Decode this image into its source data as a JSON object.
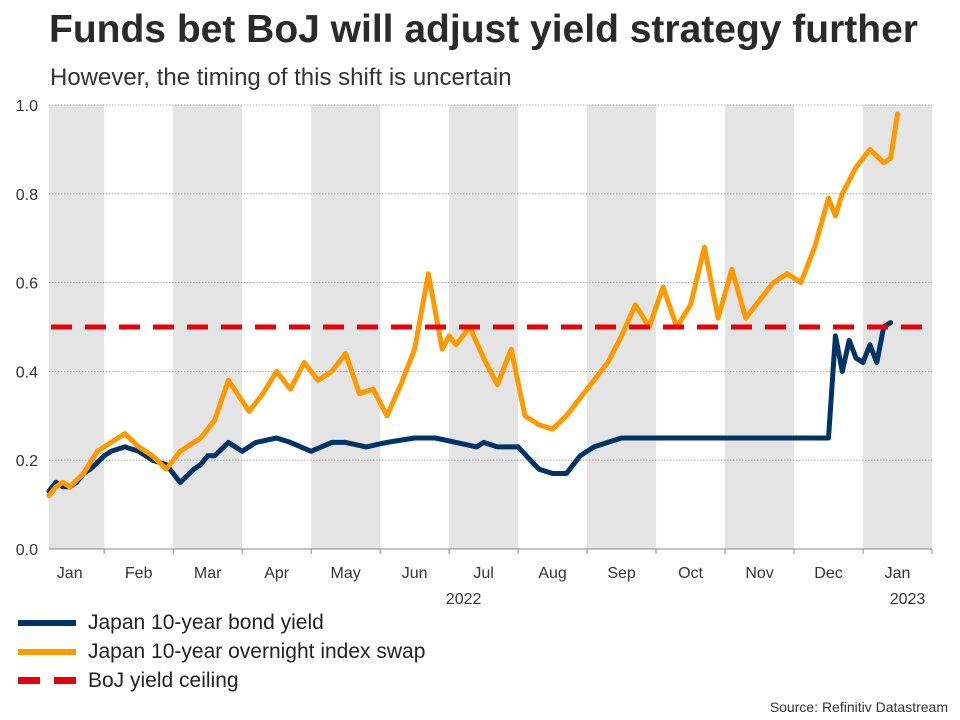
{
  "title": "Funds bet BoJ will adjust yield strategy further",
  "subtitle": "However, the timing of this shift is uncertain",
  "source": "Source: Refinitiv Datastream",
  "colors": {
    "bond": "#003366",
    "swap": "#ff9900",
    "ceiling": "#e8000b",
    "band": "#e4e4e4",
    "grid": "#9a9a9a"
  },
  "legend": [
    {
      "label": "Japan 10-year bond yield",
      "color": "#003366",
      "style": "solid"
    },
    {
      "label": "Japan 10-year overnight index swap",
      "color": "#ff9900",
      "style": "solid"
    },
    {
      "label": "BoJ yield ceiling",
      "color": "#e8000b",
      "style": "dashed"
    }
  ],
  "chart_data": {
    "type": "line",
    "ylim": [
      0,
      1.0
    ],
    "yticks": [
      "0.0",
      "0.2",
      "0.4",
      "0.6",
      "0.8",
      "1.0"
    ],
    "ytick_values": [
      0,
      0.2,
      0.4,
      0.6,
      0.8,
      1.0
    ],
    "month_labels": [
      "Jan",
      "Feb",
      "Mar",
      "Apr",
      "May",
      "Jun",
      "Jul",
      "Aug",
      "Sep",
      "Oct",
      "Nov",
      "Dec",
      "Jan"
    ],
    "year_labels": [
      {
        "label": "2022",
        "month_index": 6
      },
      {
        "label": "2023",
        "month_index": 12
      }
    ],
    "xlim_months": [
      -0.3,
      12.5
    ],
    "shaded_month_indices": [
      0,
      2,
      4,
      6,
      8,
      10,
      12
    ],
    "ceiling": {
      "name": "BoJ yield ceiling",
      "value": 0.5
    },
    "series": [
      {
        "name": "Japan 10-year bond yield",
        "x": [
          -0.3,
          -0.2,
          -0.1,
          0.0,
          0.1,
          0.2,
          0.3,
          0.5,
          0.6,
          0.8,
          1.0,
          1.2,
          1.4,
          1.6,
          1.8,
          1.9,
          2.0,
          2.1,
          2.3,
          2.5,
          2.7,
          3.0,
          3.2,
          3.5,
          3.8,
          4.0,
          4.3,
          4.6,
          5.0,
          5.3,
          5.6,
          5.9,
          6.0,
          6.2,
          6.5,
          6.8,
          7.0,
          7.2,
          7.4,
          7.6,
          7.8,
          8.0,
          8.3,
          8.6,
          9.0,
          9.3,
          9.6,
          10.0,
          10.3,
          10.6,
          11.0,
          11.1,
          11.2,
          11.3,
          11.4,
          11.5,
          11.6,
          11.7,
          11.8,
          11.9
        ],
        "y": [
          0.13,
          0.15,
          0.14,
          0.14,
          0.15,
          0.17,
          0.18,
          0.21,
          0.22,
          0.23,
          0.22,
          0.2,
          0.19,
          0.15,
          0.18,
          0.19,
          0.21,
          0.21,
          0.24,
          0.22,
          0.24,
          0.25,
          0.24,
          0.22,
          0.24,
          0.24,
          0.23,
          0.24,
          0.25,
          0.25,
          0.24,
          0.23,
          0.24,
          0.23,
          0.23,
          0.18,
          0.17,
          0.17,
          0.21,
          0.23,
          0.24,
          0.25,
          0.25,
          0.25,
          0.25,
          0.25,
          0.25,
          0.25,
          0.25,
          0.25,
          0.25,
          0.48,
          0.4,
          0.47,
          0.43,
          0.42,
          0.46,
          0.42,
          0.5,
          0.51
        ]
      },
      {
        "name": "Japan 10-year overnight index swap",
        "x": [
          -0.3,
          -0.2,
          -0.1,
          0.0,
          0.2,
          0.4,
          0.6,
          0.8,
          1.0,
          1.2,
          1.4,
          1.6,
          1.8,
          1.9,
          2.1,
          2.3,
          2.6,
          2.8,
          3.0,
          3.2,
          3.4,
          3.6,
          3.8,
          4.0,
          4.2,
          4.4,
          4.6,
          4.8,
          5.0,
          5.2,
          5.4,
          5.5,
          5.6,
          5.8,
          6.0,
          6.2,
          6.4,
          6.6,
          6.8,
          7.0,
          7.2,
          7.4,
          7.6,
          7.8,
          8.0,
          8.2,
          8.4,
          8.6,
          8.8,
          9.0,
          9.2,
          9.4,
          9.6,
          9.8,
          10.0,
          10.2,
          10.4,
          10.6,
          10.8,
          11.0,
          11.1,
          11.2,
          11.4,
          11.6,
          11.8,
          11.9,
          12.0
        ],
        "y": [
          0.12,
          0.14,
          0.15,
          0.14,
          0.17,
          0.22,
          0.24,
          0.26,
          0.23,
          0.21,
          0.18,
          0.22,
          0.24,
          0.25,
          0.29,
          0.38,
          0.31,
          0.35,
          0.4,
          0.36,
          0.42,
          0.38,
          0.4,
          0.44,
          0.35,
          0.36,
          0.3,
          0.37,
          0.45,
          0.62,
          0.45,
          0.48,
          0.46,
          0.5,
          0.43,
          0.37,
          0.45,
          0.3,
          0.28,
          0.27,
          0.3,
          0.34,
          0.38,
          0.42,
          0.48,
          0.55,
          0.5,
          0.59,
          0.5,
          0.55,
          0.68,
          0.52,
          0.63,
          0.52,
          0.56,
          0.6,
          0.62,
          0.6,
          0.68,
          0.79,
          0.75,
          0.8,
          0.86,
          0.9,
          0.87,
          0.88,
          0.98
        ]
      }
    ]
  }
}
